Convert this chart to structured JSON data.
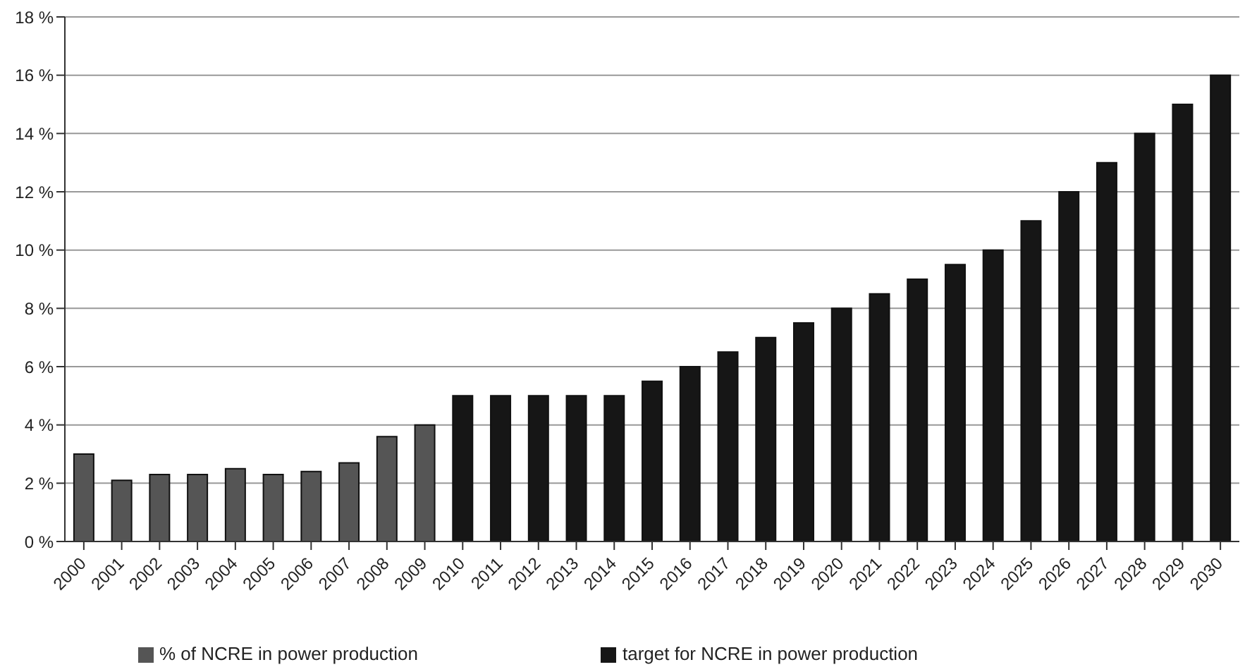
{
  "chart_data": {
    "type": "bar",
    "stacked": true,
    "categories": [
      "2000",
      "2001",
      "2002",
      "2003",
      "2004",
      "2005",
      "2006",
      "2007",
      "2008",
      "2009",
      "2010",
      "2011",
      "2012",
      "2013",
      "2014",
      "2015",
      "2016",
      "2017",
      "2018",
      "2019",
      "2020",
      "2021",
      "2022",
      "2023",
      "2024",
      "2025",
      "2026",
      "2027",
      "2028",
      "2029",
      "2030"
    ],
    "series": [
      {
        "name": "% of NCRE in power production",
        "color": "#555555",
        "values": [
          3.0,
          2.1,
          2.3,
          2.3,
          2.5,
          2.3,
          2.4,
          2.7,
          3.6,
          4.0,
          null,
          null,
          null,
          null,
          null,
          null,
          null,
          null,
          null,
          null,
          null,
          null,
          null,
          null,
          null,
          null,
          null,
          null,
          null,
          null,
          null
        ]
      },
      {
        "name": "target for NCRE in power production",
        "color": "#161616",
        "values": [
          null,
          null,
          null,
          null,
          null,
          null,
          null,
          null,
          null,
          null,
          5,
          5,
          5,
          5,
          5,
          5.5,
          6,
          6.5,
          7,
          7.5,
          8,
          8.5,
          9,
          9.5,
          10,
          11,
          12,
          13,
          14,
          15,
          16
        ]
      }
    ],
    "ylim": [
      0,
      18
    ],
    "yticks": [
      {
        "value": 0,
        "label": "0 %"
      },
      {
        "value": 2,
        "label": "2 %"
      },
      {
        "value": 4,
        "label": "4 %"
      },
      {
        "value": 6,
        "label": "6 %"
      },
      {
        "value": 8,
        "label": "8 %"
      },
      {
        "value": 10,
        "label": "10 %"
      },
      {
        "value": 12,
        "label": "12 %"
      },
      {
        "value": 14,
        "label": "14 %"
      },
      {
        "value": 16,
        "label": "16 %"
      },
      {
        "value": 18,
        "label": "18 %"
      }
    ],
    "grid": "y",
    "legend": "bottom"
  }
}
